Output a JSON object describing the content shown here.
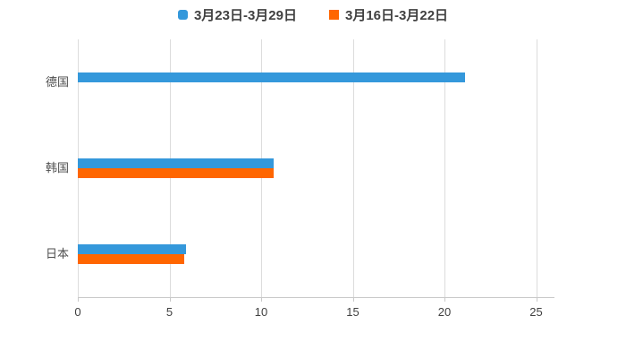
{
  "chart_data": {
    "type": "bar",
    "orientation": "horizontal",
    "title": "",
    "xlabel": "",
    "ylabel": "",
    "categories": [
      "德国",
      "韩国",
      "日本"
    ],
    "series": [
      {
        "name": "3月23日-3月29日",
        "color": "#3498db",
        "marker": "round",
        "values": [
          21.1,
          10.7,
          5.9
        ]
      },
      {
        "name": "3月16日-3月22日",
        "color": "#ff6600",
        "marker": "square",
        "values": [
          0,
          10.7,
          5.8
        ]
      }
    ],
    "xlim": [
      0,
      26
    ],
    "xticks": [
      0,
      5,
      10,
      15,
      20,
      25
    ],
    "grid": "vertical-gridlines-only",
    "legend_position": "top-center",
    "background": "#ffffff"
  },
  "colors": {
    "series_blue": "#3498db",
    "series_orange": "#ff6600",
    "gridline": "#dcdcdc",
    "axis_line": "#c9c9c9",
    "tick_label": "#404040",
    "category_label": "#4d4d4d",
    "legend_text": "#404040",
    "background": "#ffffff"
  }
}
